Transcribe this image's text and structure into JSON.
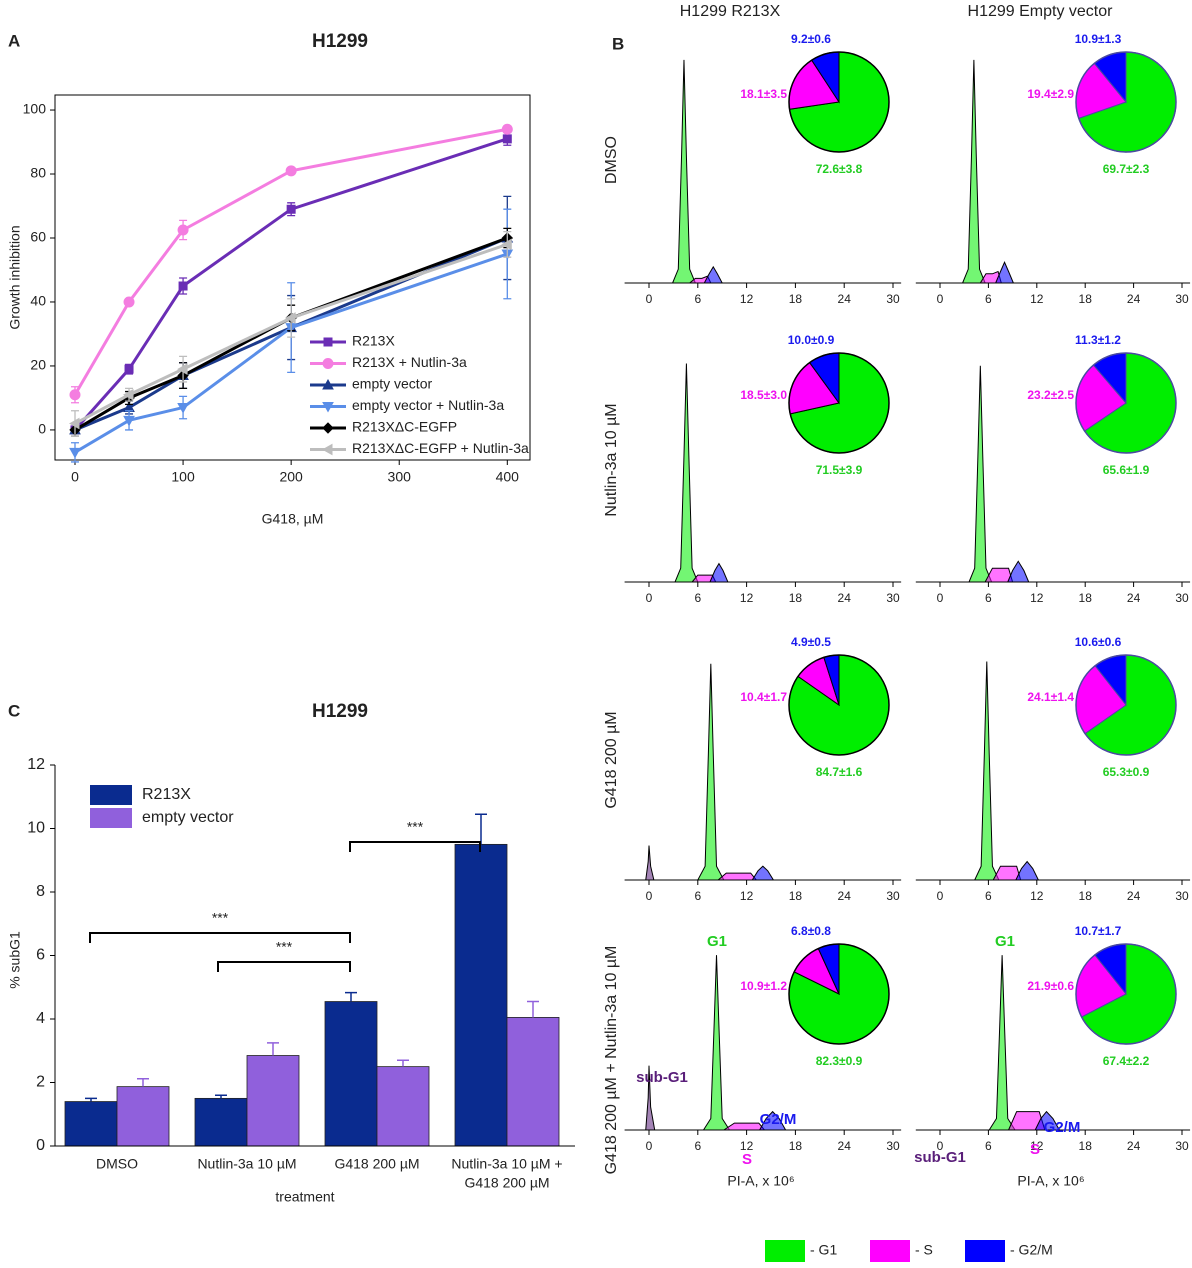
{
  "chart_data": [
    {
      "type": "line",
      "panel_label": "A",
      "title": "H1299",
      "xlabel": "G418, µM",
      "ylabel": "Growth inhibition",
      "x": [
        0,
        50,
        100,
        200,
        400
      ],
      "xlim": [
        -18.5,
        421
      ],
      "ylim": [
        -9.4,
        104.7
      ],
      "xticks": [
        0,
        100,
        200,
        300,
        400
      ],
      "yticks": [
        0,
        20,
        40,
        60,
        80,
        100
      ],
      "legend": "lower right",
      "series": [
        {
          "name": "R213X",
          "color": "#6a2db5",
          "marker": "square",
          "values": [
            0,
            19,
            45,
            69,
            91
          ],
          "errors": [
            1,
            1.5,
            2.5,
            2,
            2
          ]
        },
        {
          "name": "R213X + Nutlin-3a",
          "color": "#f47de0",
          "marker": "circle",
          "values": [
            11,
            40,
            62.5,
            81,
            94
          ],
          "errors": [
            2.5,
            1,
            3,
            1,
            1
          ]
        },
        {
          "name": "empty vector",
          "color": "#1b3a8c",
          "marker": "triangle-up",
          "values": [
            0,
            7,
            17,
            32,
            60
          ],
          "errors": [
            2,
            2,
            4,
            10,
            13
          ]
        },
        {
          "name": "empty vector + Nutlin-3a",
          "color": "#5a8ee8",
          "marker": "triangle-down",
          "values": [
            -7,
            3,
            7,
            32,
            55
          ],
          "errors": [
            3,
            3,
            3.5,
            14,
            14
          ]
        },
        {
          "name": "R213XΔC-EGFP",
          "color": "#000000",
          "marker": "diamond",
          "values": [
            0,
            10,
            17,
            35,
            60
          ],
          "errors": [
            2,
            2,
            4,
            4,
            3
          ]
        },
        {
          "name": "R213XΔC-EGFP + Nutlin-3a",
          "color": "#bdbdbd",
          "marker": "triangle-left",
          "values": [
            2,
            11,
            19,
            35,
            58
          ],
          "errors": [
            4,
            2,
            4,
            6,
            4
          ]
        }
      ]
    },
    {
      "type": "bar",
      "panel_label": "C",
      "title": "H1299",
      "xlabel": "treatment",
      "ylabel": "% subG1",
      "categories": [
        [
          "DMSO"
        ],
        [
          "Nutlin-3a 10 µM"
        ],
        [
          "G418 200 µM"
        ],
        [
          "Nutlin-3a 10 µM +",
          "G418 200 µM"
        ]
      ],
      "ylim": [
        0,
        12
      ],
      "yticks": [
        0,
        2,
        4,
        6,
        8,
        10,
        12
      ],
      "legend": "upper left",
      "series": [
        {
          "name": "R213X",
          "color": "#0a2b8f",
          "values": [
            1.4,
            1.5,
            4.55,
            9.5
          ],
          "errors": [
            0.1,
            0.1,
            0.28,
            0.95
          ]
        },
        {
          "name": "empty vector",
          "color": "#9060dc",
          "values": [
            1.87,
            2.85,
            2.5,
            4.05
          ],
          "errors": [
            0.25,
            0.4,
            0.2,
            0.5
          ]
        }
      ],
      "annotations": [
        "***",
        "***",
        "***"
      ]
    },
    {
      "type": "flow-histograms",
      "panel_label": "B",
      "columns": [
        "H1299 R213X",
        "H1299 Empty vector"
      ],
      "rows": [
        "DMSO",
        "Nutlin-3a 10 µM",
        "G418 200 µM",
        "G418 200 µM + Nutlin-3a 10 µM"
      ],
      "xlim": [
        -3,
        31
      ],
      "xticks": [
        0,
        6,
        12,
        18,
        24,
        30
      ],
      "ylim": [
        0,
        100
      ],
      "xlabel": "PI-A, x 10⁶",
      "colors": {
        "g1": "#00ee00",
        "s": "#ff00ff",
        "g2m": "#0000ff",
        "subg1": "#5a1f7a"
      },
      "text_colors": [
        "#22cc22",
        "#ee11ee",
        "#1a1aee"
      ],
      "legend": [
        {
          "label": "- G1",
          "color": "#00ee00"
        },
        {
          "label": "- S",
          "color": "#ff00ff"
        },
        {
          "label": "- G2/M",
          "color": "#0000ff"
        }
      ],
      "panels": [
        [
          {
            "g1": {
              "x": [
                2.9,
                3.6,
                4.0,
                4.3,
                4.6,
                5.0,
                5.7
              ],
              "values": [
                0,
                6,
                55,
                97,
                55,
                6,
                0
              ]
            },
            "s": {
              "x": [
                5.0,
                5.7,
                6.5,
                7.2,
                7.6
              ],
              "values": [
                0,
                2,
                2,
                3,
                0
              ]
            },
            "g2m": {
              "x": [
                6.8,
                7.4,
                7.9,
                8.4,
                9.0
              ],
              "values": [
                0,
                4,
                7,
                4,
                0
              ]
            },
            "pie": {
              "values": [
                72.6,
                18.1,
                9.2
              ],
              "value_labels": [
                "72.6±3.8",
                "18.1±3.5",
                "9.2±0.6"
              ]
            }
          },
          {
            "g1": {
              "x": [
                2.8,
                3.5,
                3.9,
                4.2,
                4.5,
                4.9,
                5.6
              ],
              "values": [
                0,
                6,
                55,
                97,
                55,
                6,
                0
              ]
            },
            "s": {
              "x": [
                5.0,
                5.7,
                6.5,
                7.2,
                7.6
              ],
              "values": [
                0,
                4,
                4,
                5,
                0
              ]
            },
            "g2m": {
              "x": [
                6.9,
                7.5,
                8.0,
                8.5,
                9.1
              ],
              "values": [
                0,
                5,
                9,
                5,
                0
              ]
            },
            "pie": {
              "values": [
                69.7,
                19.4,
                10.9
              ],
              "value_labels": [
                "69.7±2.3",
                "19.4±2.9",
                "10.9±1.3"
              ]
            }
          }
        ],
        [
          {
            "g1": {
              "x": [
                3.2,
                3.9,
                4.3,
                4.6,
                4.9,
                5.3,
                6.0
              ],
              "values": [
                0,
                6,
                55,
                95,
                55,
                6,
                0
              ]
            },
            "s": {
              "x": [
                5.3,
                6.0,
                7.0,
                7.8,
                8.2
              ],
              "values": [
                0,
                3,
                3,
                3,
                0
              ]
            },
            "g2m": {
              "x": [
                7.5,
                8.1,
                8.6,
                9.1,
                9.7
              ],
              "values": [
                0,
                5,
                8,
                5,
                0
              ]
            },
            "pie": {
              "values": [
                71.5,
                18.5,
                10.0
              ],
              "value_labels": [
                "71.5±3.9",
                "18.5±3.0",
                "10.0±0.9"
              ]
            }
          },
          {
            "g1": {
              "x": [
                3.6,
                4.3,
                4.7,
                5.0,
                5.3,
                5.7,
                6.4
              ],
              "values": [
                0,
                6,
                55,
                94,
                55,
                6,
                0
              ]
            },
            "s": {
              "x": [
                5.6,
                6.5,
                7.5,
                8.5,
                9.0
              ],
              "values": [
                0,
                6,
                6,
                6,
                0
              ]
            },
            "g2m": {
              "x": [
                8.4,
                9.0,
                9.7,
                10.4,
                11.0
              ],
              "values": [
                0,
                5,
                9,
                5,
                0
              ]
            },
            "pie": {
              "values": [
                65.6,
                23.2,
                11.3
              ],
              "value_labels": [
                "65.6±1.9",
                "23.2±2.5",
                "11.3±1.2"
              ]
            }
          }
        ],
        [
          {
            "subg1": {
              "x": [
                -0.4,
                -0.1,
                0,
                0.2,
                0.6
              ],
              "values": [
                0,
                8,
                15,
                6,
                0
              ]
            },
            "g1": {
              "x": [
                6.0,
                6.9,
                7.3,
                7.6,
                7.9,
                8.3,
                9.2
              ],
              "values": [
                0,
                6,
                55,
                94,
                55,
                6,
                0
              ]
            },
            "s": {
              "x": [
                8.5,
                9.5,
                11.0,
                12.5,
                13.2
              ],
              "values": [
                0,
                3,
                3,
                3,
                0
              ]
            },
            "g2m": {
              "x": [
                12.7,
                13.4,
                14.0,
                14.6,
                15.3
              ],
              "values": [
                0,
                4,
                6,
                4,
                0
              ]
            },
            "pie": {
              "values": [
                84.7,
                10.4,
                4.9
              ],
              "value_labels": [
                "84.7±1.6",
                "10.4±1.7",
                "4.9±0.5"
              ]
            }
          },
          {
            "g1": {
              "x": [
                4.3,
                5.1,
                5.5,
                5.8,
                6.1,
                6.5,
                7.3
              ],
              "values": [
                0,
                6,
                55,
                95,
                55,
                6,
                0
              ]
            },
            "s": {
              "x": [
                6.6,
                7.5,
                8.5,
                9.5,
                10.0
              ],
              "values": [
                0,
                6,
                6,
                6,
                0
              ]
            },
            "g2m": {
              "x": [
                9.4,
                10.1,
                10.8,
                11.5,
                12.2
              ],
              "values": [
                0,
                5,
                8,
                5,
                0
              ]
            },
            "pie": {
              "values": [
                65.3,
                24.1,
                10.6
              ],
              "value_labels": [
                "65.3±0.9",
                "24.1±1.4",
                "10.6±0.6"
              ]
            }
          }
        ],
        [
          {
            "subg1": {
              "x": [
                -0.4,
                -0.1,
                0,
                0.2,
                0.7
              ],
              "values": [
                0,
                14,
                28,
                10,
                0
              ]
            },
            "g1": {
              "x": [
                6.7,
                7.6,
                8.0,
                8.3,
                8.6,
                9.0,
                9.9
              ],
              "values": [
                0,
                5,
                45,
                76,
                45,
                5,
                0
              ]
            },
            "s": {
              "x": [
                9.2,
                10.5,
                12.0,
                13.5,
                14.2
              ],
              "values": [
                0,
                3,
                3,
                3,
                0
              ]
            },
            "g2m": {
              "x": [
                13.6,
                14.4,
                15.2,
                16.0,
                16.8
              ],
              "values": [
                0,
                5,
                8,
                5,
                0
              ]
            },
            "pie": {
              "values": [
                82.3,
                10.9,
                6.8
              ],
              "value_labels": [
                "82.3±0.9",
                "10.9±1.2",
                "6.8±0.8"
              ]
            },
            "labels": {
              "g1": "G1",
              "subg1": "sub-G1",
              "s": "S",
              "g2m": "G2/M"
            }
          },
          {
            "g1": {
              "x": [
                6.1,
                7.0,
                7.4,
                7.7,
                8.0,
                8.4,
                9.3
              ],
              "values": [
                0,
                5,
                45,
                76,
                45,
                5,
                0
              ]
            },
            "s": {
              "x": [
                8.5,
                9.5,
                11.0,
                12.3,
                13.0
              ],
              "values": [
                0,
                8,
                8,
                8,
                0
              ]
            },
            "g2m": {
              "x": [
                11.8,
                12.5,
                13.2,
                14.0,
                14.8
              ],
              "values": [
                0,
                5,
                8,
                5,
                0
              ]
            },
            "pie": {
              "values": [
                67.4,
                21.9,
                10.7
              ],
              "value_labels": [
                "67.4±2.2",
                "21.9±0.6",
                "10.7±1.7"
              ]
            },
            "labels": {
              "g1": "G1",
              "subg1": "sub-G1",
              "s": "S",
              "g2m": "G2/M"
            }
          }
        ]
      ]
    }
  ]
}
